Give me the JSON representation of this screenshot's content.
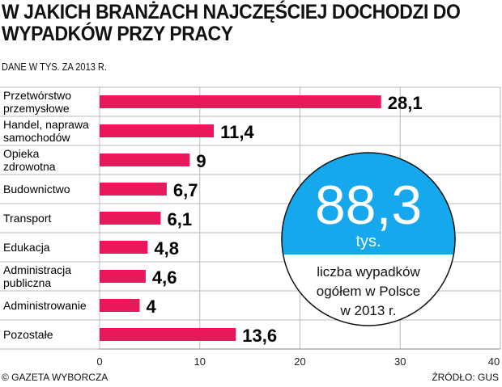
{
  "chart_data": {
    "type": "bar",
    "title": "W JAKICH BRANŻACH NAJCZĘŚCIEJ DOCHODZI DO WYPADKÓW PRZY PRACY",
    "subtitle": "DANE W TYS. ZA 2013 R.",
    "categories": [
      [
        "Przetwórstwo",
        "przemysłowe"
      ],
      [
        "Handel, naprawa",
        "samochodów"
      ],
      [
        "Opieka",
        "zdrowotna"
      ],
      [
        "Budownictwo"
      ],
      [
        "Transport"
      ],
      [
        "Edukacja"
      ],
      [
        "Administracja",
        "publiczna"
      ],
      [
        "Administrowanie"
      ],
      [
        "Pozostałe"
      ]
    ],
    "values": [
      28.1,
      11.4,
      9,
      6.7,
      6.1,
      4.8,
      4.6,
      4,
      13.6
    ],
    "value_labels": [
      "28,1",
      "11,4",
      "9",
      "6,7",
      "6,1",
      "4,8",
      "4,6",
      "4",
      "13,6"
    ],
    "xlim": [
      0,
      40
    ],
    "xticks": [
      "0",
      "10",
      "20",
      "30",
      "40"
    ],
    "bar_color": "#e8185a",
    "grid": true
  },
  "callout": {
    "value": "88,3",
    "unit": "tys.",
    "desc": [
      "liczba wypadków",
      "ogółem w Polsce",
      "w 2013 r."
    ],
    "color": "#16a8ec"
  },
  "footer": {
    "copyright": "© GAZETA WYBORCZA",
    "source": "ŹRÓDŁO: GUS"
  }
}
